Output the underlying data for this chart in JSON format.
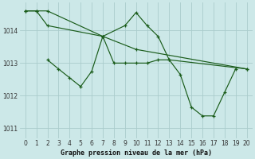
{
  "bg_color": "#cce8e8",
  "grid_color": "#aacccc",
  "line_color": "#1a5c1a",
  "title": "Graphe pression niveau de la mer (hPa)",
  "xlim": [
    -0.5,
    20.5
  ],
  "ylim": [
    1010.7,
    1014.85
  ],
  "yticks": [
    1011,
    1012,
    1013,
    1014
  ],
  "xticks": [
    0,
    1,
    2,
    3,
    4,
    5,
    6,
    7,
    8,
    9,
    10,
    11,
    12,
    13,
    14,
    15,
    16,
    17,
    18,
    19,
    20
  ],
  "series1": {
    "x": [
      0,
      1,
      2,
      7,
      10,
      20
    ],
    "y": [
      1014.6,
      1014.6,
      1014.6,
      1013.82,
      1013.42,
      1012.82
    ]
  },
  "series2": {
    "x": [
      0,
      1,
      2,
      7,
      9,
      10,
      11,
      12,
      13,
      20
    ],
    "y": [
      1014.6,
      1014.6,
      1014.15,
      1013.82,
      1014.15,
      1014.55,
      1014.15,
      1013.82,
      1013.1,
      1012.82
    ]
  },
  "series3": {
    "x": [
      2,
      3,
      4,
      5,
      6,
      7,
      8,
      9,
      10,
      11,
      12,
      13,
      14,
      15,
      16,
      17,
      18,
      19
    ],
    "y": [
      1013.1,
      1012.82,
      1012.55,
      1012.28,
      1012.75,
      1013.82,
      1013.0,
      1013.0,
      1013.0,
      1013.0,
      1013.1,
      1013.1,
      1012.65,
      1011.65,
      1011.38,
      1011.38,
      1012.1,
      1012.82
    ]
  },
  "tick_labelsize": 5.5,
  "xlabel_fontsize": 6.0
}
